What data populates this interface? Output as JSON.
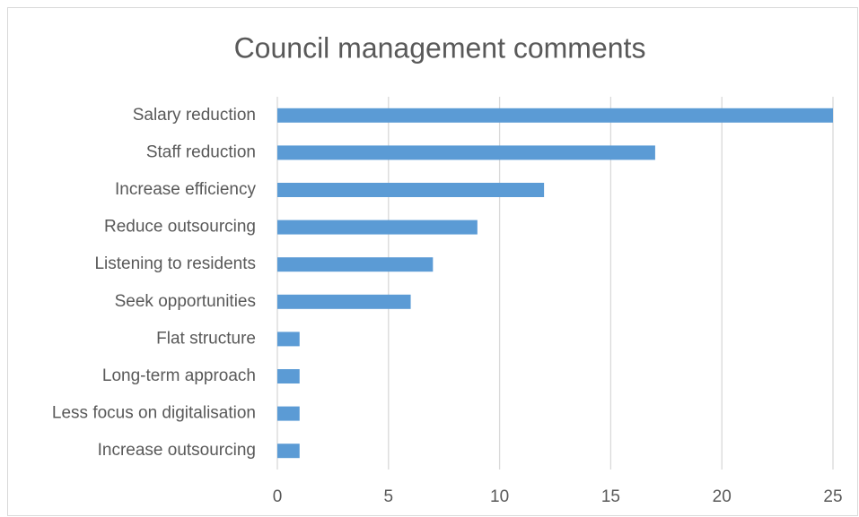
{
  "chart_data": {
    "type": "bar",
    "orientation": "horizontal",
    "title": "Council management comments",
    "categories": [
      "Salary reduction",
      "Staff reduction",
      "Increase efficiency",
      "Reduce outsourcing",
      "Listening to residents",
      "Seek opportunities",
      "Flat structure",
      "Long-term approach",
      "Less focus on digitalisation",
      "Increase outsourcing"
    ],
    "values": [
      25,
      17,
      12,
      9,
      7,
      6,
      1,
      1,
      1,
      1
    ],
    "color": "#5b9bd5",
    "xlim": [
      0,
      25
    ],
    "xticks": [
      0,
      5,
      10,
      15,
      20,
      25
    ],
    "grid": true
  }
}
